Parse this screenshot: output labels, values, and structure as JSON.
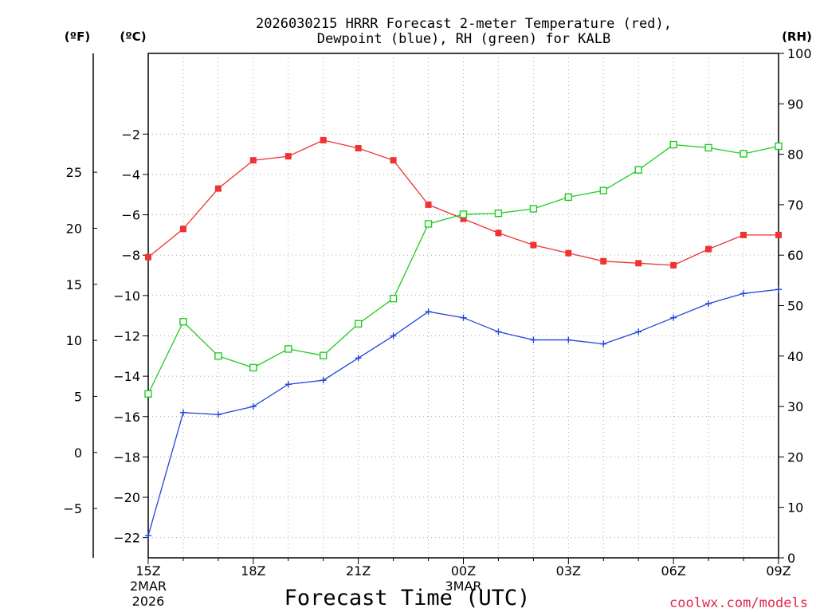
{
  "chart_data": {
    "type": "line",
    "title_line1": "2026030215 HRRR Forecast 2-meter Temperature (red),",
    "title_line2": "Dewpoint (blue), RH (green) for KALB",
    "xlabel": "Forecast Time (UTC)",
    "credit": "coolwx.com/models",
    "left_axis_f_label": "(ºF)",
    "left_axis_c_label": "(ºC)",
    "right_axis_label": "(RH)",
    "x": [
      0,
      1,
      2,
      3,
      4,
      5,
      6,
      7,
      8,
      9,
      10,
      11,
      12,
      13,
      14,
      15,
      16,
      17,
      18
    ],
    "x_ticks": [
      {
        "x": 0,
        "label": "15Z",
        "sub1": "2MAR",
        "sub2": "2026"
      },
      {
        "x": 3,
        "label": "18Z",
        "sub1": "",
        "sub2": ""
      },
      {
        "x": 6,
        "label": "21Z",
        "sub1": "",
        "sub2": ""
      },
      {
        "x": 9,
        "label": "00Z",
        "sub1": "3MAR",
        "sub2": ""
      },
      {
        "x": 12,
        "label": "03Z",
        "sub1": "",
        "sub2": ""
      },
      {
        "x": 15,
        "label": "06Z",
        "sub1": "",
        "sub2": ""
      },
      {
        "x": 18,
        "label": "09Z",
        "sub1": "",
        "sub2": ""
      }
    ],
    "ylim_c": [
      -23,
      2
    ],
    "yticks_c": [
      -2,
      -4,
      -6,
      -8,
      -10,
      -12,
      -14,
      -16,
      -18,
      -20,
      -22
    ],
    "yticks_c_labels": [
      "−2",
      "−4",
      "−6",
      "−8",
      "−10",
      "−12",
      "−14",
      "−16",
      "−18",
      "−20",
      "−22"
    ],
    "yticks_f": [
      25,
      20,
      15,
      10,
      5,
      0,
      -5
    ],
    "yticks_f_labels": [
      "25",
      "20",
      "15",
      "10",
      "5",
      "0",
      "−5"
    ],
    "ylim_rh": [
      0,
      100
    ],
    "yticks_rh": [
      0,
      10,
      20,
      30,
      40,
      50,
      60,
      70,
      80,
      90,
      100
    ],
    "grid": true,
    "series": [
      {
        "name": "Temperature",
        "axis": "c",
        "color": "#ee3333",
        "marker": "filled-square",
        "values": [
          -8.1,
          -6.7,
          -4.7,
          -3.3,
          -3.1,
          -2.3,
          -2.7,
          -3.3,
          -5.5,
          -6.2,
          -6.9,
          -7.5,
          -7.9,
          -8.3,
          -8.4,
          -8.5,
          -7.7,
          -7.0,
          -7.0
        ]
      },
      {
        "name": "Dewpoint",
        "axis": "c",
        "color": "#2244dd",
        "marker": "plus",
        "values": [
          -21.9,
          -15.8,
          -15.9,
          -15.5,
          -14.4,
          -14.2,
          -13.1,
          -12.0,
          -10.8,
          -11.1,
          -11.8,
          -12.2,
          -12.2,
          -12.4,
          -11.8,
          -11.1,
          -10.4,
          -9.9,
          -9.7
        ]
      },
      {
        "name": "RH",
        "axis": "rh",
        "color": "#22cc22",
        "marker": "open-square",
        "values": [
          32.5,
          46.8,
          40.0,
          37.7,
          41.4,
          40.1,
          46.4,
          51.4,
          66.2,
          68.1,
          68.3,
          69.2,
          71.5,
          72.8,
          76.9,
          81.9,
          81.3,
          80.1,
          81.6
        ]
      }
    ]
  }
}
